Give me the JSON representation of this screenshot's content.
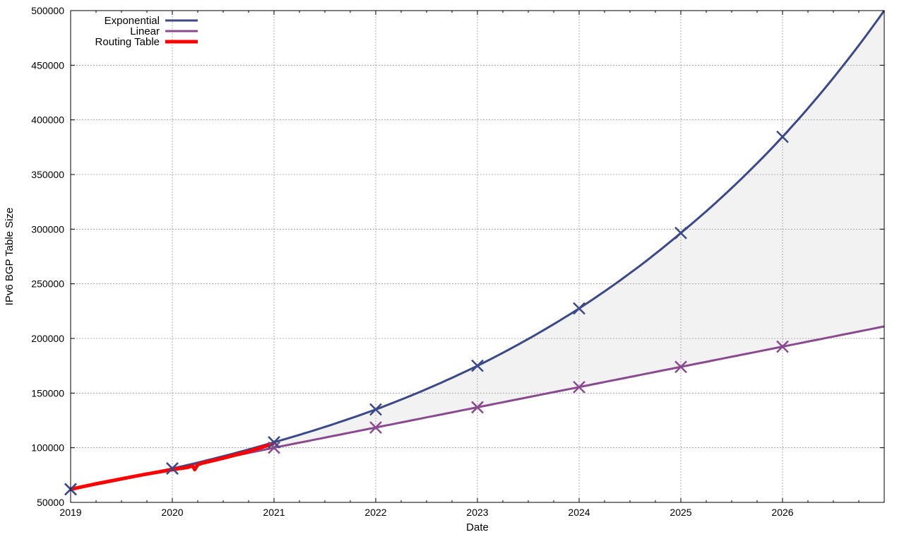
{
  "chart_data": {
    "type": "line",
    "title": "",
    "xlabel": "Date",
    "ylabel": "IPv6 BGP Table Size",
    "xlim": [
      2019,
      2027
    ],
    "ylim": [
      50000,
      500000
    ],
    "x_ticks": [
      "2019",
      "2020",
      "2021",
      "2022",
      "2023",
      "2024",
      "2025",
      "2026"
    ],
    "y_ticks": [
      "50000",
      "100000",
      "150000",
      "200000",
      "250000",
      "300000",
      "350000",
      "400000",
      "450000",
      "500000"
    ],
    "grid": true,
    "legend": "top-left",
    "series": [
      {
        "name": "Exponential",
        "color": "#3b4a87",
        "x": [
          2019,
          2020,
          2021,
          2022,
          2023,
          2024,
          2025,
          2026,
          2027
        ],
        "values": [
          62000,
          81000,
          105000,
          135000,
          175000,
          227500,
          296500,
          384500,
          500000
        ],
        "marked_x": [
          2019,
          2020,
          2021,
          2022,
          2023,
          2024,
          2025,
          2026
        ]
      },
      {
        "name": "Linear",
        "color": "#8a4a8f",
        "x": [
          2019,
          2020,
          2021,
          2022,
          2023,
          2024,
          2025,
          2026,
          2027
        ],
        "values": [
          62000,
          81000,
          100000,
          118500,
          137000,
          155500,
          174000,
          192500,
          211000
        ],
        "marked_x": [
          2019,
          2020,
          2021,
          2022,
          2023,
          2024,
          2025,
          2026
        ]
      },
      {
        "name": "Routing Table",
        "color": "#ff0000",
        "x": [
          2019.0,
          2019.25,
          2019.5,
          2019.75,
          2020.0,
          2020.15,
          2020.2,
          2020.22,
          2020.25,
          2020.3,
          2020.5,
          2020.75,
          2021.0
        ],
        "values": [
          62000,
          67000,
          71500,
          76000,
          80000,
          82000,
          83500,
          80000,
          84500,
          86000,
          90500,
          96500,
          104000
        ]
      }
    ],
    "shaded_region": {
      "between": [
        "Exponential",
        "Linear"
      ],
      "color": "#f2f2f2"
    }
  }
}
